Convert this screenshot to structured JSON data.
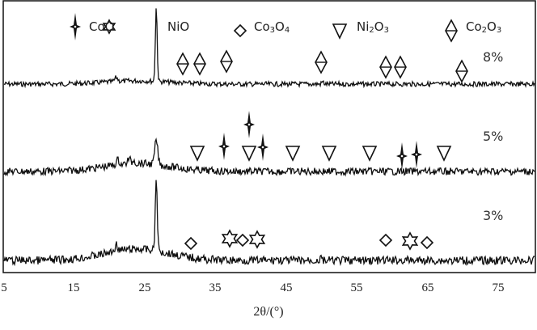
{
  "chart_data": {
    "type": "line",
    "title": "",
    "xlabel": "2θ/(°)",
    "ylabel": "",
    "xlim": [
      5,
      80
    ],
    "x_ticks": [
      "5",
      "15",
      "25",
      "35",
      "45",
      "55",
      "65",
      "75"
    ],
    "grid": false,
    "legend_position": "top (inside plot)",
    "legend": [
      {
        "symbol": "four-point-star",
        "label": "CoO"
      },
      {
        "symbol": "six-point-star",
        "label": "NiO"
      },
      {
        "symbol": "diamond",
        "label": "Co3O4"
      },
      {
        "symbol": "down-triangle",
        "label": "Ni2O3"
      },
      {
        "symbol": "diamond-with-bar",
        "label": "Co2O3"
      }
    ],
    "series": [
      {
        "name": "8%",
        "main_peak_2theta": 26.6,
        "markers": {
          "Co2O3": [
            30.4,
            32.8,
            36.6,
            49.9,
            59.1,
            61.2,
            69.9
          ],
          "NiO": [
            26.6
          ]
        }
      },
      {
        "name": "5%",
        "main_peak_2theta": 26.7,
        "markers": {
          "Ni2O3": [
            32.5,
            39.8,
            46.0,
            51.1,
            56.8,
            67.3
          ],
          "CoO": [
            36.2,
            39.8,
            41.7,
            61.3,
            63.4
          ]
        }
      },
      {
        "name": "3%",
        "main_peak_2theta": 26.6,
        "markers": {
          "Co3O4": [
            31.5,
            38.9,
            59.1,
            64.9
          ],
          "NiO": [
            37.0,
            40.9,
            62.5
          ]
        }
      }
    ]
  },
  "legend": {
    "coo": "CoO",
    "nio": "NiO",
    "co3o4_a": "Co",
    "co3o4_b": "3",
    "co3o4_c": "O",
    "co3o4_d": "4",
    "ni2o3_a": "Ni",
    "ni2o3_b": "2",
    "ni2o3_c": "O",
    "ni2o3_d": "3",
    "co2o3_a": "Co",
    "co2o3_b": "2",
    "co2o3_c": "O",
    "co2o3_d": "3"
  },
  "labels": {
    "s8": "8%",
    "s5": "5%",
    "s3": "3%"
  },
  "axis": {
    "ticks": [
      "5",
      "15",
      "25",
      "35",
      "45",
      "55",
      "65",
      "75"
    ],
    "xlabel": "2θ/(°)"
  }
}
